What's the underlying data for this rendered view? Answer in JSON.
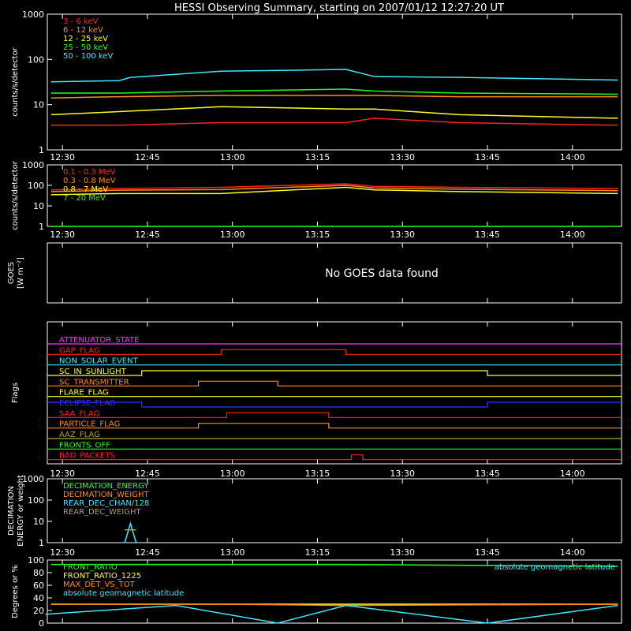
{
  "title": "HESSI Observing Summary, starting on 2007/01/12 12:27:20 UT",
  "colors": {
    "red": "#ff2020",
    "orange": "#ff8c1a",
    "yellow": "#ffff20",
    "green": "#20ff20",
    "cyan": "#40e8ff",
    "magenta": "#ff30ff",
    "blue": "#3030ff",
    "olive": "#b0a040",
    "white": "#ffffff"
  },
  "time_ticks": [
    "12:30",
    "12:45",
    "13:00",
    "13:15",
    "13:30",
    "13:45",
    "14:00"
  ],
  "chart_data": [
    {
      "id": "panel1",
      "type": "line",
      "ylabel": "counts/s/detector",
      "yscale": "log",
      "ylim": [
        1,
        1000
      ],
      "ytick_labels": [
        "1",
        "10",
        "100",
        "1000"
      ],
      "x_unit": "UT",
      "xlim": [
        "12:27:20",
        "14:08:40"
      ],
      "series": [
        {
          "name": "3 - 6 keV",
          "color": "red",
          "x": [
            "12:28",
            "12:40",
            "12:58",
            "13:20",
            "13:25",
            "13:40",
            "14:08"
          ],
          "values": [
            3.5,
            3.5,
            4,
            4,
            5,
            4,
            3.5
          ]
        },
        {
          "name": "6 - 12 keV",
          "color": "orange",
          "x": [
            "12:28",
            "12:40",
            "12:58",
            "13:20",
            "13:25",
            "13:40",
            "14:08"
          ],
          "values": [
            14,
            15,
            16,
            16,
            16,
            15,
            15
          ]
        },
        {
          "name": "12 - 25 keV",
          "color": "yellow",
          "x": [
            "12:28",
            "12:40",
            "12:58",
            "13:20",
            "13:25",
            "13:40",
            "14:08"
          ],
          "values": [
            6,
            7,
            9,
            8,
            8,
            6,
            5
          ]
        },
        {
          "name": "25 - 50 keV",
          "color": "green",
          "x": [
            "12:28",
            "12:40",
            "12:58",
            "13:20",
            "13:25",
            "13:40",
            "14:08"
          ],
          "values": [
            18,
            18,
            20,
            22,
            20,
            18,
            17
          ]
        },
        {
          "name": "50 - 100 keV",
          "color": "cyan",
          "x": [
            "12:28",
            "12:40",
            "12:42",
            "12:58",
            "13:20",
            "13:25",
            "13:40",
            "14:08"
          ],
          "values": [
            32,
            34,
            40,
            55,
            60,
            42,
            40,
            35
          ]
        }
      ]
    },
    {
      "id": "panel2",
      "type": "line",
      "ylabel": "counts/s/detector",
      "yscale": "log",
      "ylim": [
        1,
        1000
      ],
      "ytick_labels": [
        "1",
        "10",
        "100",
        "1000"
      ],
      "series": [
        {
          "name": "0.1 - 0.3 MeV",
          "color": "red",
          "x": [
            "12:28",
            "12:40",
            "12:58",
            "13:20",
            "13:25",
            "13:40",
            "14:08"
          ],
          "values": [
            60,
            70,
            80,
            120,
            90,
            80,
            70
          ]
        },
        {
          "name": "0.3 - 0.8 MeV",
          "color": "orange",
          "x": [
            "12:28",
            "12:40",
            "12:58",
            "13:20",
            "13:25",
            "13:40",
            "14:08"
          ],
          "values": [
            50,
            58,
            62,
            100,
            75,
            65,
            55
          ]
        },
        {
          "name": "0.8 - 7 MeV",
          "color": "yellow",
          "x": [
            "12:28",
            "12:40",
            "12:58",
            "13:20",
            "13:25",
            "13:40",
            "14:08"
          ],
          "values": [
            35,
            40,
            40,
            80,
            60,
            50,
            40
          ]
        },
        {
          "name": "7 - 20 MeV",
          "color": "green",
          "x": [
            "12:28",
            "14:08"
          ],
          "values": [
            1,
            1
          ]
        }
      ]
    },
    {
      "id": "panel3",
      "type": "line",
      "ylabel": "GOES",
      "ylabel2": "[W m⁻²]",
      "message": "No GOES data found",
      "series": []
    },
    {
      "id": "panel4",
      "type": "line",
      "ylabel": "Flags",
      "series": [
        {
          "name": "ATTENUATOR_STATE",
          "color": "magenta"
        },
        {
          "name": "GAP_FLAG",
          "color": "red",
          "on": [
            [
              "12:58",
              "13:20"
            ]
          ]
        },
        {
          "name": "NON_SOLAR_EVENT",
          "color": "cyan"
        },
        {
          "name": "SC_IN_SUNLIGHT",
          "color": "yellow",
          "on": [
            [
              "12:44",
              "13:45"
            ]
          ]
        },
        {
          "name": "SC_TRANSMITTER",
          "color": "orange",
          "on": [
            [
              "12:54",
              "13:08"
            ]
          ]
        },
        {
          "name": "FLARE_FLAG",
          "color": "yellow"
        },
        {
          "name": "ECLIPSE_FLAG",
          "color": "blue",
          "off": [
            [
              "12:44",
              "13:45"
            ]
          ]
        },
        {
          "name": "SAA_FLAG",
          "color": "red",
          "on": [
            [
              "12:59",
              "13:17"
            ]
          ]
        },
        {
          "name": "PARTICLE_FLAG",
          "color": "orange",
          "on": [
            [
              "12:54",
              "13:17"
            ]
          ]
        },
        {
          "name": "AAZ_FLAG",
          "color": "olive"
        },
        {
          "name": "FRONTS_OFF",
          "color": "green"
        },
        {
          "name": "BAD_PACKETS",
          "color": "red",
          "on": [
            [
              "13:21",
              "13:23"
            ]
          ]
        }
      ]
    },
    {
      "id": "panel5",
      "type": "line",
      "ylabel": "DECIMATION",
      "ylabel2": "ENERGY or weight",
      "yscale": "log",
      "ylim": [
        1,
        1000
      ],
      "ytick_labels": [
        "1",
        "10",
        "100",
        "1000"
      ],
      "series": [
        {
          "name": "DECIMATION_ENERGY",
          "color": "green"
        },
        {
          "name": "DECIMATION_WEIGHT",
          "color": "orange"
        },
        {
          "name": "REAR_DEC_CHAN/128",
          "color": "cyan",
          "x": [
            "12:41",
            "12:42",
            "12:42",
            "12:43"
          ],
          "values": [
            1,
            8,
            8,
            1
          ]
        },
        {
          "name": "REAR_DEC_WEIGHT",
          "color": "olive",
          "x": [
            "12:41",
            "12:43"
          ],
          "values": [
            4,
            4
          ]
        }
      ]
    },
    {
      "id": "panel6",
      "type": "line",
      "ylabel": "Degrees or %",
      "ylim": [
        0,
        100
      ],
      "ytick_labels": [
        "0",
        "20",
        "40",
        "60",
        "80",
        "100"
      ],
      "note": "absolute geomagnetic latitude",
      "series": [
        {
          "name": "FRONT_RATIO",
          "color": "green",
          "x": [
            "12:28",
            "12:58",
            "13:20",
            "14:08"
          ],
          "values": [
            93,
            93,
            93,
            90
          ]
        },
        {
          "name": "FRONT_RATIO_1225",
          "color": "yellow",
          "x": [
            "12:28",
            "12:58",
            "13:20",
            "14:08"
          ],
          "values": [
            30,
            30,
            30,
            30
          ]
        },
        {
          "name": "MAX_DET_VS_TOT",
          "color": "orange",
          "x": [
            "12:28",
            "12:58",
            "13:20",
            "14:08"
          ],
          "values": [
            30,
            30,
            28,
            30
          ]
        },
        {
          "name": "absolute geomagnetic latitude",
          "color": "cyan",
          "x": [
            "12:27",
            "12:50",
            "13:08",
            "13:20",
            "13:45",
            "14:08"
          ],
          "values": [
            14,
            28,
            0,
            28,
            0,
            28
          ]
        }
      ]
    }
  ]
}
